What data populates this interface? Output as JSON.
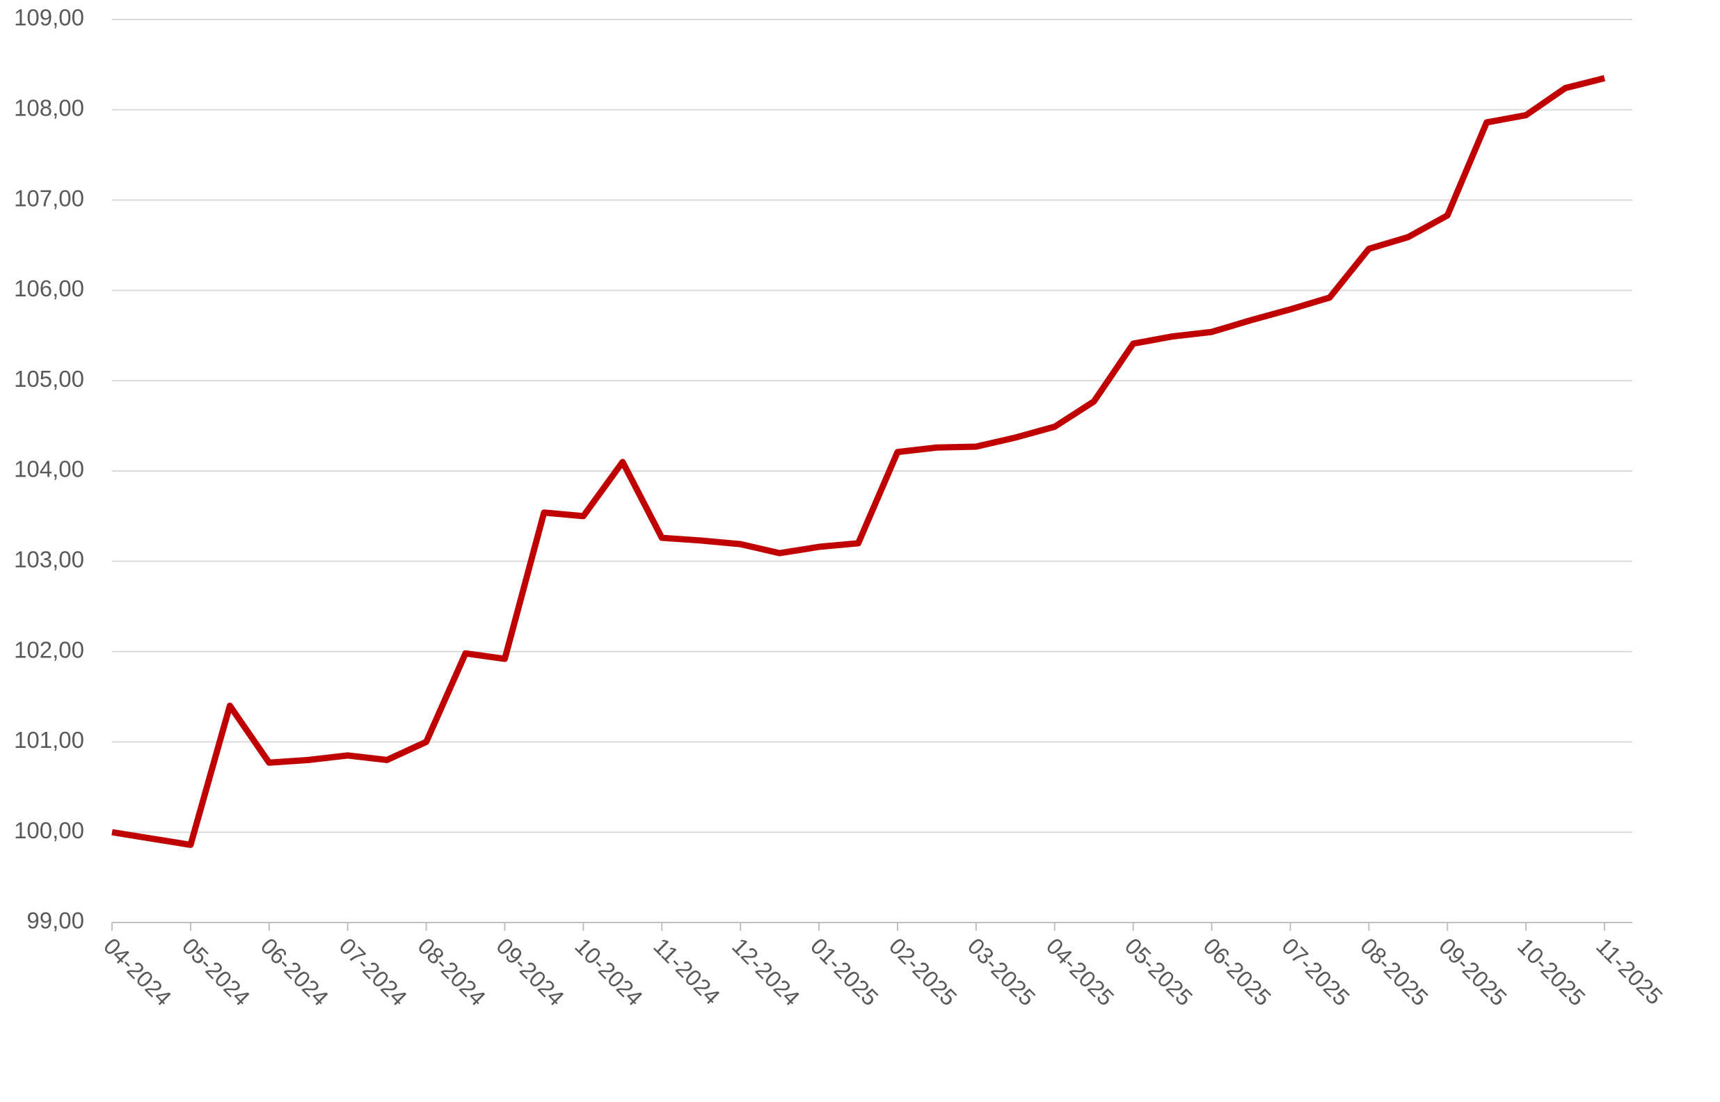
{
  "chart_data": {
    "type": "line",
    "categories": [
      "04-2024",
      null,
      "05-2024",
      null,
      "06-2024",
      null,
      "07-2024",
      null,
      "08-2024",
      null,
      "09-2024",
      null,
      "10-2024",
      null,
      "11-2024",
      null,
      "12-2024",
      null,
      "01-2025",
      null,
      "02-2025",
      null,
      "03-2025",
      null,
      "04-2025",
      null,
      "05-2025",
      null,
      "06-2025",
      null,
      "07-2025",
      null,
      "08-2025",
      null,
      "09-2025",
      null,
      "10-2025",
      null,
      "11-2025"
    ],
    "series": [
      {
        "color": "#c00000",
        "values": [
          100.0,
          99.93,
          99.86,
          101.4,
          100.77,
          100.8,
          100.85,
          100.8,
          101.0,
          101.98,
          101.92,
          103.54,
          103.5,
          104.1,
          103.26,
          103.23,
          103.19,
          103.09,
          103.16,
          103.2,
          104.21,
          104.26,
          104.27,
          104.37,
          104.49,
          104.77,
          105.41,
          105.49,
          105.54,
          105.67,
          105.79,
          105.92,
          106.46,
          106.59,
          106.83,
          107.86,
          107.94,
          108.24,
          108.35
        ]
      }
    ],
    "ylim": [
      99,
      109
    ],
    "yticks": [
      {
        "value": 99,
        "label": "99,00"
      },
      {
        "value": 100,
        "label": "100,00"
      },
      {
        "value": 101,
        "label": "101,00"
      },
      {
        "value": 102,
        "label": "102,00"
      },
      {
        "value": 103,
        "label": "103,00"
      },
      {
        "value": 104,
        "label": "104,00"
      },
      {
        "value": 105,
        "label": "105,00"
      },
      {
        "value": 106,
        "label": "106,00"
      },
      {
        "value": 107,
        "label": "107,00"
      },
      {
        "value": 108,
        "label": "108,00"
      },
      {
        "value": 109,
        "label": "109,00"
      }
    ],
    "grid": true
  }
}
